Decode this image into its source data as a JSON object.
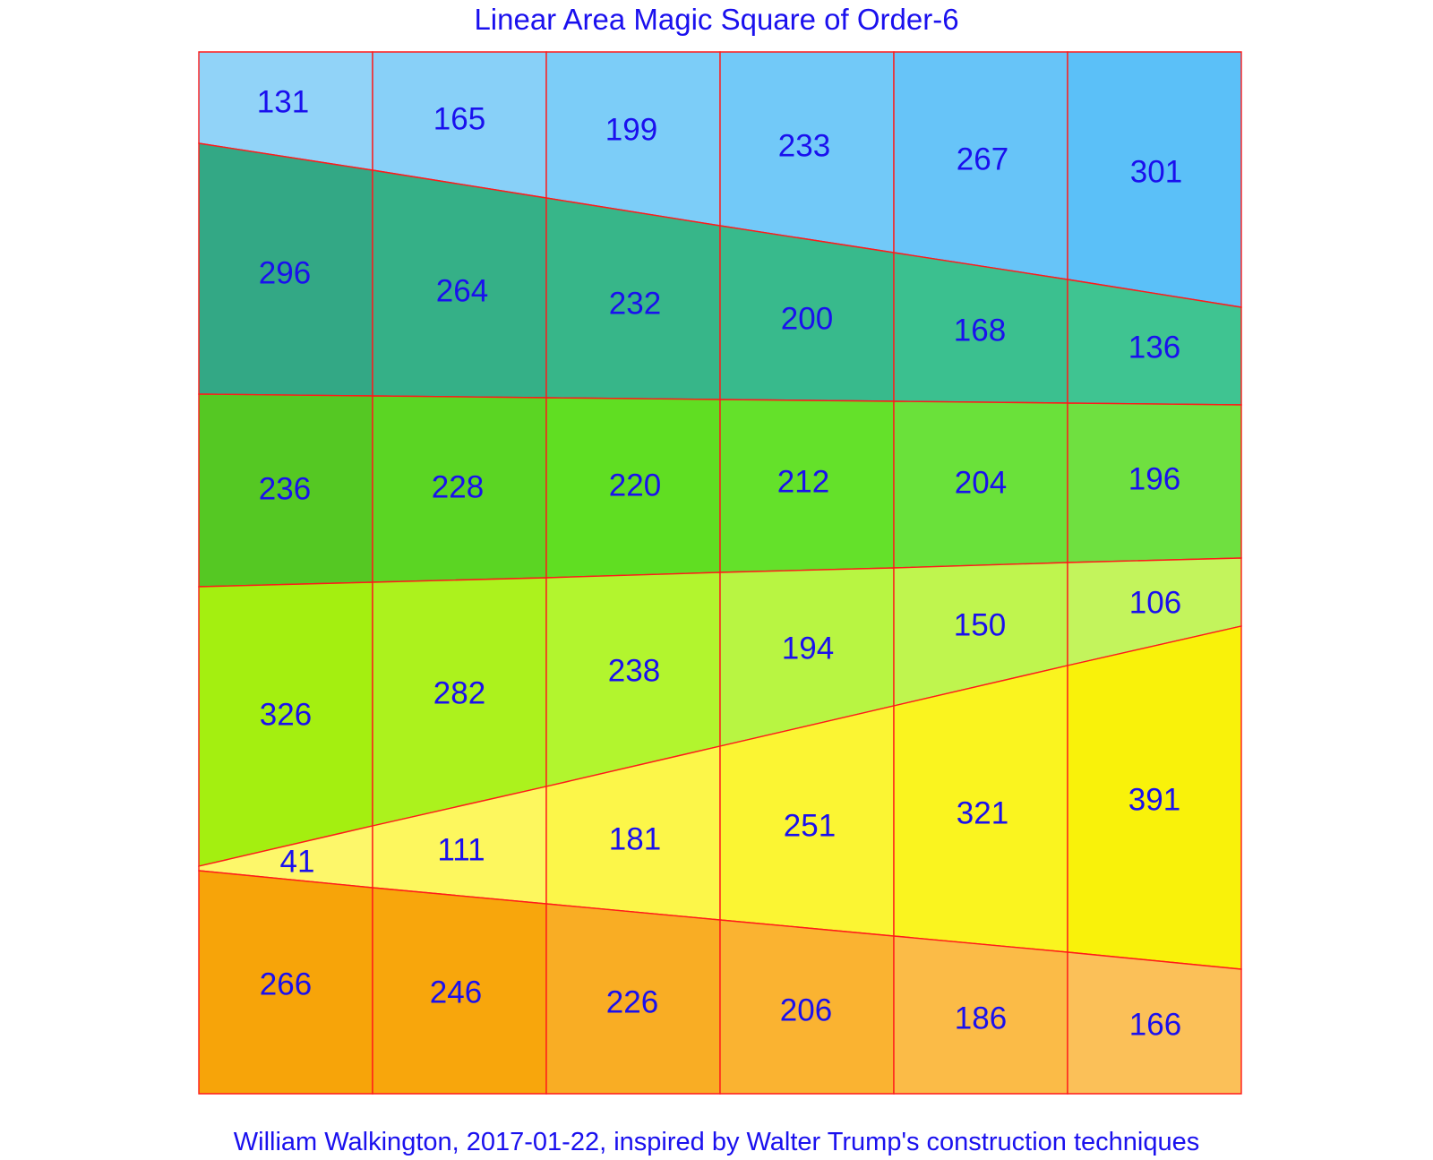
{
  "title": "Linear Area Magic Square of Order-6",
  "footer": "William Walkington, 2017-01-22, inspired by Walter Trump's construction techniques",
  "colors": {
    "text": "#1a10ee",
    "grid_lines": "#ff1a1a",
    "background": "#ffffff"
  },
  "square": {
    "order": 6,
    "bands": [
      {
        "values": [
          131,
          165,
          199,
          233,
          267,
          301
        ],
        "colors": [
          "#91d3f8",
          "#88d0f8",
          "#7ccdf8",
          "#72c9f8",
          "#67c4f8",
          "#5bc0f8"
        ]
      },
      {
        "values": [
          296,
          264,
          232,
          200,
          168,
          136
        ],
        "colors": [
          "#33a885",
          "#35b087",
          "#37b689",
          "#38ba8c",
          "#3bc08f",
          "#3fc491"
        ]
      },
      {
        "values": [
          236,
          228,
          220,
          212,
          204,
          196
        ],
        "colors": [
          "#55c823",
          "#5bd523",
          "#60de22",
          "#64e12a",
          "#6ae13a",
          "#6fe040"
        ]
      },
      {
        "values": [
          326,
          282,
          238,
          194,
          150,
          106
        ],
        "colors": [
          "#a4ef10",
          "#acf21d",
          "#b2f52e",
          "#b8f542",
          "#bff54e",
          "#c3f45c"
        ]
      },
      {
        "values": [
          41,
          111,
          181,
          251,
          321,
          391
        ],
        "colors": [
          "#fdf76a",
          "#fdf75e",
          "#fcf649",
          "#fbf533",
          "#faf41f",
          "#f9f20a"
        ]
      },
      {
        "values": [
          266,
          246,
          226,
          206,
          186,
          166
        ],
        "colors": [
          "#f7a409",
          "#f8a60c",
          "#f9ad24",
          "#fab331",
          "#fbbb47",
          "#fbc058"
        ]
      }
    ]
  }
}
